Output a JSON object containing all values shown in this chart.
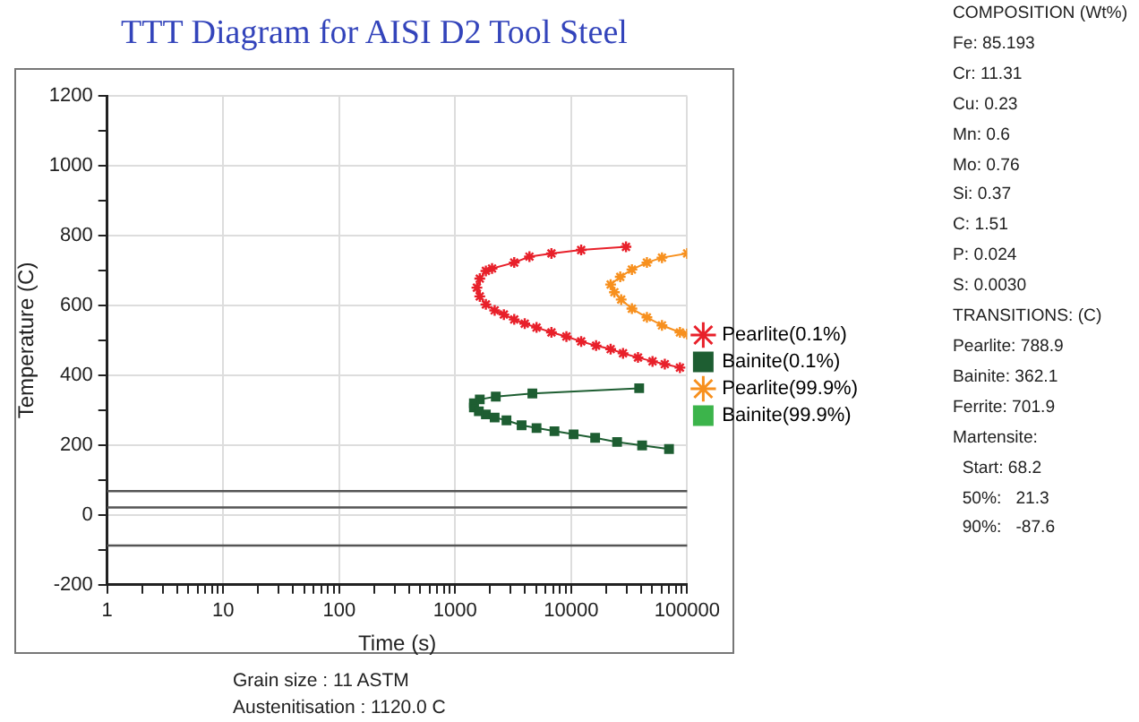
{
  "chart_data": {
    "type": "line",
    "title": "TTT Diagram for AISI D2 Tool Steel",
    "xlabel": "Time (s)",
    "ylabel": "Temperature (C)",
    "log": "x",
    "xlim": [
      1,
      100000
    ],
    "ylim": [
      -200,
      1200
    ],
    "xticks": [
      1,
      {
        "value": 2,
        "label": null
      },
      {
        "value": 3,
        "label": null
      },
      {
        "value": 4,
        "label": null
      },
      {
        "value": 5,
        "label": null
      },
      {
        "value": 6,
        "label": null
      },
      {
        "value": 7,
        "label": null
      },
      {
        "value": 8,
        "label": null
      },
      {
        "value": 9,
        "label": null
      },
      10,
      {
        "value": 20,
        "label": null
      },
      {
        "value": 30,
        "label": null
      },
      {
        "value": 40,
        "label": null
      },
      {
        "value": 50,
        "label": null
      },
      {
        "value": 60,
        "label": null
      },
      {
        "value": 70,
        "label": null
      },
      {
        "value": 80,
        "label": null
      },
      {
        "value": 90,
        "label": null
      },
      100,
      {
        "value": 200,
        "label": null
      },
      {
        "value": 300,
        "label": null
      },
      {
        "value": 400,
        "label": null
      },
      {
        "value": 500,
        "label": null
      },
      {
        "value": 600,
        "label": null
      },
      {
        "value": 700,
        "label": null
      },
      {
        "value": 800,
        "label": null
      },
      {
        "value": 900,
        "label": null
      },
      1000,
      {
        "value": 2000,
        "label": null
      },
      {
        "value": 3000,
        "label": null
      },
      {
        "value": 4000,
        "label": null
      },
      {
        "value": 5000,
        "label": null
      },
      {
        "value": 6000,
        "label": null
      },
      {
        "value": 7000,
        "label": null
      },
      {
        "value": 8000,
        "label": null
      },
      {
        "value": 9000,
        "label": null
      },
      10000,
      {
        "value": 20000,
        "label": null
      },
      {
        "value": 30000,
        "label": null
      },
      {
        "value": 40000,
        "label": null
      },
      {
        "value": 50000,
        "label": null
      },
      {
        "value": 60000,
        "label": null
      },
      {
        "value": 70000,
        "label": null
      },
      {
        "value": 80000,
        "label": null
      },
      {
        "value": 90000,
        "label": null
      },
      100000
    ],
    "yticks": [
      -200,
      {
        "value": -100,
        "label": null
      },
      0,
      {
        "value": 100,
        "label": null
      },
      200,
      {
        "value": 300,
        "label": null
      },
      400,
      {
        "value": 500,
        "label": null
      },
      600,
      {
        "value": 700,
        "label": null
      },
      800,
      {
        "value": 900,
        "label": null
      },
      1000,
      {
        "value": 1100,
        "label": null
      },
      1200
    ],
    "grid": true,
    "legend": "right",
    "line_style": "solid",
    "series": [
      {
        "name": "Pearlite(0.1%)",
        "color": "#e8202a",
        "marker": "cross",
        "x": [
          29700,
          12200,
          6760,
          4370,
          3230,
          2080,
          1840,
          1630,
          1540,
          1630,
          1840,
          2190,
          2630,
          3230,
          3980,
          5030,
          6760,
          9100,
          12200,
          16400,
          21900,
          28000,
          37700,
          50300,
          64200,
          86700
        ],
        "values": [
          768,
          759,
          749,
          740,
          723,
          706,
          699,
          677,
          651,
          626,
          603,
          586,
          574,
          560,
          548,
          537,
          523,
          511,
          497,
          485,
          475,
          463,
          451,
          440,
          432,
          422
        ]
      },
      {
        "name": "Bainite(0.1%)",
        "color": "#1e5e32",
        "marker": "square",
        "x": [
          38600,
          4630,
          2240,
          1630,
          1450,
          1450,
          1600,
          1840,
          2190,
          2770,
          3740,
          5030,
          7180,
          10500,
          16100,
          24900,
          40900,
          69800
        ],
        "values": [
          363,
          348,
          339,
          331,
          320,
          308,
          297,
          288,
          279,
          271,
          257,
          249,
          240,
          231,
          221,
          209,
          199,
          189
        ]
      },
      {
        "name": "Pearlite(99.9%)",
        "color": "#f7901e",
        "marker": "cross",
        "x": [
          100000,
          60700,
          45000,
          33400,
          26500,
          21900,
          23600,
          27000,
          33400,
          45000,
          60700,
          86700,
          100000
        ],
        "values": [
          749,
          737,
          723,
          703,
          682,
          660,
          638,
          617,
          591,
          566,
          543,
          523,
          518
        ]
      },
      {
        "name": "Bainite(99.9%)",
        "color": "#3cb44b",
        "marker": "square"
      }
    ],
    "ref_lines": [
      {
        "axis": "y",
        "value": 68.2,
        "color": "#555555"
      },
      {
        "axis": "y",
        "value": 21.3,
        "color": "#555555"
      },
      {
        "axis": "y",
        "value": -87.6,
        "color": "#555555"
      }
    ],
    "annotations": [
      "COMPOSITION (Wt%)",
      "Fe: 85.193",
      "Cr: 11.31",
      "Cu: 0.23",
      "Mn: 0.6",
      "Mo: 0.76",
      "Si: 0.37",
      "C: 1.51",
      "P: 0.024",
      "S: 0.0030",
      "TRANSITIONS: (C)",
      "Pearlite: 788.9",
      "Bainite: 362.1",
      "Ferrite: 701.9",
      "Martensite:",
      "  Start: 68.2",
      "  50%:   21.3",
      "  90%:   -87.6",
      "Grain size : 11 ASTM",
      "Austenitisation : 1120.0 C"
    ]
  }
}
